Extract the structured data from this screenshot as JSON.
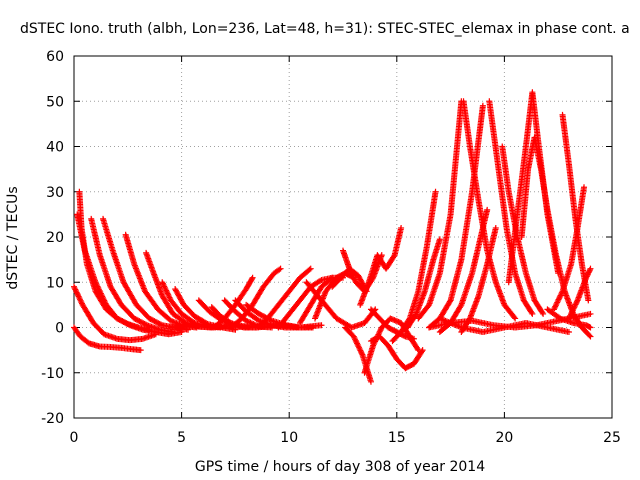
{
  "chart_data": {
    "type": "scatter",
    "title": "dSTEC Iono. truth (albh, Lon=236, Lat=48, h=31): STEC-STEC_elemax in phase cont. a",
    "xlabel": "GPS time / hours of day 308 of year 2014",
    "ylabel": "dSTEC  / TECUs",
    "xlim": [
      0,
      25
    ],
    "ylim": [
      -20,
      60
    ],
    "xticks": [
      0,
      5,
      10,
      15,
      20,
      25
    ],
    "yticks": [
      -20,
      -10,
      0,
      10,
      20,
      30,
      40,
      50,
      60
    ],
    "grid": true,
    "marker": "plus",
    "color": "#ff0000",
    "series": [
      {
        "x": [
          0.0,
          0.3,
          0.7,
          1.2,
          1.7,
          2.2,
          2.7,
          3.1
        ],
        "y": [
          0,
          -2,
          -3.5,
          -4.2,
          -4.3,
          -4.5,
          -4.8,
          -5
        ]
      },
      {
        "x": [
          0.0,
          0.4,
          0.9,
          1.4,
          2.0,
          2.6,
          3.2,
          3.8
        ],
        "y": [
          9,
          5,
          1,
          -1.5,
          -2.5,
          -2.8,
          -2.5,
          -1.5
        ]
      },
      {
        "x": [
          0.15,
          0.5,
          1.0,
          1.5,
          2.0,
          2.6,
          3.2,
          3.8,
          4.4,
          5.0
        ],
        "y": [
          25,
          17,
          10,
          5,
          2,
          0.5,
          -0.5,
          -1,
          -1.5,
          -1
        ]
      },
      {
        "x": [
          0.25,
          0.35,
          0.6,
          1.0,
          1.5,
          2.0,
          2.5,
          3.0,
          3.5
        ],
        "y": [
          30,
          22,
          14,
          8,
          4,
          2,
          0.8,
          0,
          -0.5
        ]
      },
      {
        "x": [
          0.8,
          1.2,
          1.7,
          2.2,
          2.8,
          3.4,
          4.0,
          4.6
        ],
        "y": [
          24,
          16,
          9,
          5,
          2,
          0.5,
          -0.5,
          -1
        ]
      },
      {
        "x": [
          1.35,
          1.8,
          2.3,
          2.9,
          3.5,
          4.1,
          4.7,
          5.3
        ],
        "y": [
          24,
          17,
          10,
          5,
          2,
          0.5,
          0,
          -0.5
        ]
      },
      {
        "x": [
          2.4,
          2.8,
          3.3,
          3.9,
          4.5,
          5.1,
          5.7
        ],
        "y": [
          20.5,
          14,
          8,
          4,
          1.5,
          0.3,
          0
        ]
      },
      {
        "x": [
          3.35,
          3.7,
          4.1,
          4.6,
          5.2,
          5.8,
          6.4
        ],
        "y": [
          16.5,
          12,
          7,
          3,
          1,
          0.2,
          0
        ]
      },
      {
        "x": [
          4.1,
          4.5,
          5.0,
          5.6,
          6.2,
          6.8
        ],
        "y": [
          10,
          6,
          3,
          1,
          0.3,
          0
        ]
      },
      {
        "x": [
          4.7,
          5.1,
          5.6,
          6.2,
          6.9,
          7.5
        ],
        "y": [
          8.5,
          5,
          2.5,
          0.8,
          0,
          -0.5
        ]
      },
      {
        "x": [
          5.8,
          6.3,
          6.9,
          7.5,
          8.1
        ],
        "y": [
          6,
          3.5,
          1.5,
          0.2,
          0
        ]
      },
      {
        "x": [
          6.4,
          6.8,
          7.3,
          7.9,
          8.5
        ],
        "y": [
          4.5,
          2.5,
          1,
          0,
          0
        ]
      },
      {
        "x": [
          7.0,
          7.5,
          8.0,
          8.6,
          9.2
        ],
        "y": [
          6,
          3.5,
          1.5,
          0.2,
          0
        ]
      },
      {
        "x": [
          7.5,
          8.0,
          8.6,
          9.2,
          9.8,
          10.4
        ],
        "y": [
          6,
          3.5,
          1.5,
          0.5,
          0,
          0
        ]
      },
      {
        "x": [
          8.0,
          8.6,
          9.2,
          9.9,
          10.5,
          11.1
        ],
        "y": [
          5,
          3,
          1.5,
          0.5,
          0,
          0
        ]
      },
      {
        "x": [
          6.5,
          7.0,
          7.5,
          8.0,
          8.3
        ],
        "y": [
          0,
          2,
          5,
          8.5,
          11
        ]
      },
      {
        "x": [
          7.3,
          7.8,
          8.3,
          8.8,
          9.3,
          9.6
        ],
        "y": [
          0,
          2,
          5,
          9,
          12,
          13
        ]
      },
      {
        "x": [
          8.5,
          9.0,
          9.5,
          10.0,
          10.5,
          11.0
        ],
        "y": [
          0,
          2,
          5,
          8,
          11,
          13
        ]
      },
      {
        "x": [
          9.5,
          10.0,
          10.5,
          11.0,
          11.5,
          12.0
        ],
        "y": [
          0,
          3,
          6,
          9,
          10.5,
          11
        ]
      },
      {
        "x": [
          10.5,
          11.0,
          11.5,
          12.0,
          12.5
        ],
        "y": [
          1,
          5,
          9,
          11,
          11
        ]
      },
      {
        "x": [
          11.2,
          11.7,
          12.2,
          12.6,
          13.0
        ],
        "y": [
          2,
          8,
          11,
          12,
          11
        ]
      },
      {
        "x": [
          12.0,
          12.4,
          12.8,
          13.2,
          13.6
        ],
        "y": [
          9,
          11,
          13,
          11.5,
          8
        ]
      },
      {
        "x": [
          12.5,
          12.8,
          13.1,
          13.5,
          13.9,
          14.3
        ],
        "y": [
          17,
          13,
          10,
          8,
          11,
          16
        ]
      },
      {
        "x": [
          13.3,
          13.7,
          14.1,
          14.5,
          14.9,
          15.2
        ],
        "y": [
          5,
          10,
          16,
          13,
          16,
          22
        ]
      },
      {
        "x": [
          10.8,
          11.5,
          12.2,
          12.9,
          13.5,
          14.0
        ],
        "y": [
          10,
          6,
          2,
          0,
          1,
          4
        ]
      },
      {
        "x": [
          12.6,
          13.0,
          13.4,
          13.8
        ],
        "y": [
          0,
          -2,
          -6,
          -12
        ]
      },
      {
        "x": [
          13.5,
          13.9,
          14.3,
          14.7,
          15.2,
          15.6,
          16.0
        ],
        "y": [
          -10,
          -4,
          0,
          2,
          1,
          -2,
          -5
        ]
      },
      {
        "x": [
          13.8,
          14.2,
          14.6,
          15.0,
          15.4,
          15.8,
          16.2
        ],
        "y": [
          -3,
          -2,
          -4,
          -7,
          -9,
          -8,
          -5
        ]
      },
      {
        "x": [
          13.8,
          14.2,
          14.6,
          15.0,
          15.4,
          15.8
        ],
        "y": [
          4,
          2,
          0,
          -1,
          -2,
          -2.5
        ]
      },
      {
        "x": [
          14.8,
          15.2,
          15.6,
          16.0,
          16.4,
          16.8
        ],
        "y": [
          -3,
          -1,
          2,
          8,
          18,
          30
        ]
      },
      {
        "x": [
          15.5,
          15.9,
          16.3,
          16.7,
          17.0
        ],
        "y": [
          0,
          3,
          8,
          15,
          19.5
        ]
      },
      {
        "x": [
          16.0,
          16.5,
          17.0,
          17.5,
          18.0
        ],
        "y": [
          2,
          5,
          12,
          25,
          50
        ]
      },
      {
        "x": [
          16.5,
          17.0,
          17.5,
          18.0,
          18.5,
          19.0
        ],
        "y": [
          0,
          2,
          6,
          15,
          30,
          49
        ]
      },
      {
        "x": [
          17.0,
          17.5,
          18.0,
          18.5,
          18.8,
          19.2
        ],
        "y": [
          -1,
          1,
          5,
          12,
          18,
          26
        ]
      },
      {
        "x": [
          18.0,
          18.4,
          18.8,
          19.2,
          19.6
        ],
        "y": [
          -1,
          2,
          7,
          14,
          22
        ]
      },
      {
        "x": [
          18.1,
          18.4,
          18.8,
          19.2,
          19.6,
          20.0,
          20.5
        ],
        "y": [
          50,
          40,
          28,
          17,
          10,
          5,
          2
        ]
      },
      {
        "x": [
          19.3,
          19.7,
          20.1,
          20.5,
          20.9,
          21.3
        ],
        "y": [
          50,
          36,
          22,
          12,
          6,
          3
        ]
      },
      {
        "x": [
          19.9,
          20.2,
          20.6,
          21.0,
          21.4,
          21.8
        ],
        "y": [
          40,
          30,
          20,
          12,
          6,
          3
        ]
      },
      {
        "x": [
          20.2,
          20.6,
          21.0,
          21.3,
          21.6,
          22.0,
          22.5
        ],
        "y": [
          10,
          25,
          40,
          52,
          40,
          25,
          12
        ]
      },
      {
        "x": [
          20.8,
          21.1,
          21.4,
          21.7,
          22.0,
          22.4,
          22.8
        ],
        "y": [
          20,
          35,
          42,
          35,
          26,
          16,
          8
        ]
      },
      {
        "x": [
          22.7,
          23.0,
          23.3,
          23.6,
          23.9
        ],
        "y": [
          47,
          36,
          24,
          14,
          6
        ]
      },
      {
        "x": [
          22.3,
          22.7,
          23.1,
          23.4,
          23.7
        ],
        "y": [
          4,
          8,
          14,
          22,
          31
        ]
      },
      {
        "x": [
          23.0,
          23.4,
          23.8,
          24.0
        ],
        "y": [
          2,
          6,
          11,
          13
        ]
      },
      {
        "x": [
          22.0,
          22.6,
          23.2,
          23.8,
          24.0
        ],
        "y": [
          4,
          2,
          1,
          0.5,
          0
        ]
      },
      {
        "x": [
          22.8,
          23.2,
          23.6,
          24.0
        ],
        "y": [
          8,
          3,
          0,
          -2
        ]
      },
      {
        "x": [
          16.5,
          17.5,
          18.5,
          19.5,
          20.5,
          21.5,
          22.5,
          23.5,
          24.0
        ],
        "y": [
          0,
          1,
          1.5,
          0.5,
          0,
          0.5,
          1.5,
          2.5,
          3
        ]
      },
      {
        "x": [
          17.0,
          18.0,
          19.0,
          20.0,
          21.0,
          22.0,
          23.0
        ],
        "y": [
          2,
          0,
          -1,
          0,
          1,
          0,
          -1
        ]
      },
      {
        "x": [
          4.5,
          5.5,
          6.5,
          7.5,
          8.5,
          9.5,
          10.5,
          11.5
        ],
        "y": [
          0,
          0.3,
          0,
          0.5,
          0,
          0.5,
          0,
          0.5
        ]
      }
    ]
  }
}
